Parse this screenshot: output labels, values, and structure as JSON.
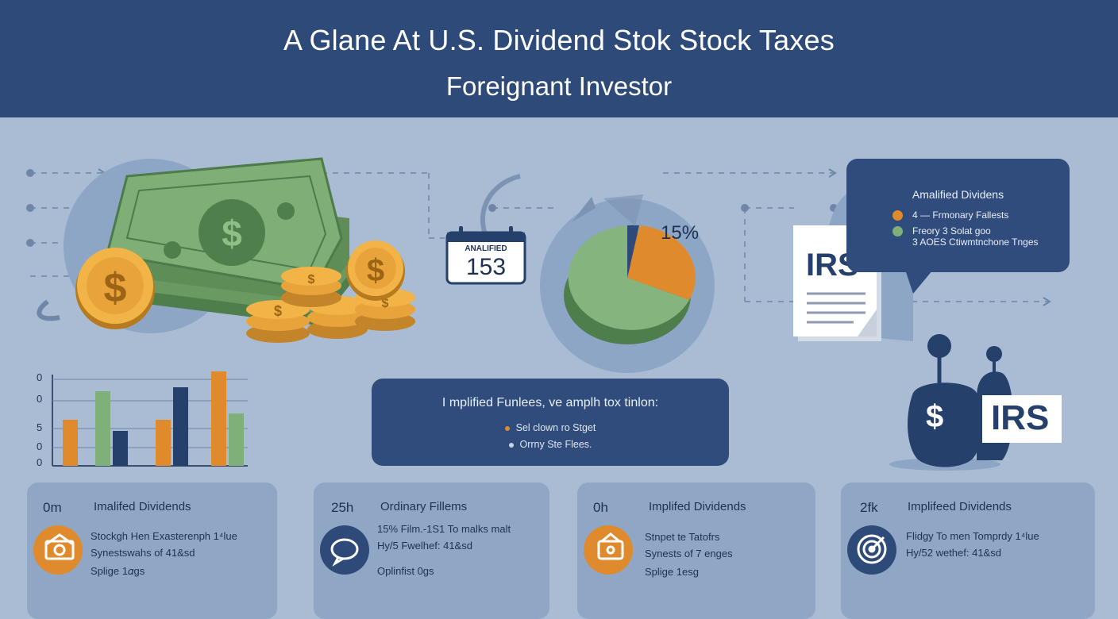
{
  "header": {
    "title_line1": "A Glane At U.S. Dividend Stok Stock Taxes",
    "title_line2": "Foreignant Investor"
  },
  "calendar": {
    "label": "ANALIFIED",
    "value": "153"
  },
  "pie": {
    "label": "15%"
  },
  "irs_document": {
    "label": "IRS"
  },
  "irs_bag": {
    "label": "IRS",
    "symbol": "$"
  },
  "legend_bubble": {
    "title": "Amalified Dividens",
    "items": [
      {
        "label": "4 — Frmonary Fallests",
        "color": "#e08a2e"
      },
      {
        "label": "Freory 3 Solat goo",
        "color": "#7fb07a"
      },
      {
        "label": "3  AOES Ctiwmtnchone Tnges",
        "color": ""
      }
    ]
  },
  "bar_chart": {
    "y_ticks": [
      "0",
      "0",
      "5",
      "0",
      "0"
    ]
  },
  "center_box": {
    "title": "I mplified Funlees, ve amplh tox tinlon:",
    "items": [
      {
        "label": "Sel clown ro Stget",
        "color": "#e08a2e"
      },
      {
        "label": "Orrny Ste Flees.",
        "color": "#c9d4e4"
      }
    ]
  },
  "cards": [
    {
      "num": "0m",
      "title": "Imalifed Dividends",
      "lines": [
        "Stockgh Hen Exasterenph 1⁴lue",
        "Synestswahs of 41&sd",
        "Splige 1𝛼gs"
      ],
      "icon": "money-envelope-icon",
      "icon_color": "#e08a2e"
    },
    {
      "num": "25h",
      "title": "Ordinary Fillems",
      "lines": [
        "15% Film.-1S1 To malks malt",
        "Hy/5 Fwelhef: 41&sd",
        "Oplinfist 0gs"
      ],
      "icon": "chat-bubble-icon",
      "icon_color": "#2d4a78"
    },
    {
      "num": "0h",
      "title": "Implifed Dividends",
      "lines": [
        "Stnpet te Tatofrs",
        "Synests of 7 enges",
        "Splige 1esg"
      ],
      "icon": "wallet-icon",
      "icon_color": "#e08a2e"
    },
    {
      "num": "2fk",
      "title": "Implifeed Dividends",
      "lines": [
        "Flidgy To men Tomprdy 1⁴lue",
        "Hy/52 wethef: 41&sd",
        ""
      ],
      "icon": "target-icon",
      "icon_color": "#2d4a78"
    }
  ]
}
